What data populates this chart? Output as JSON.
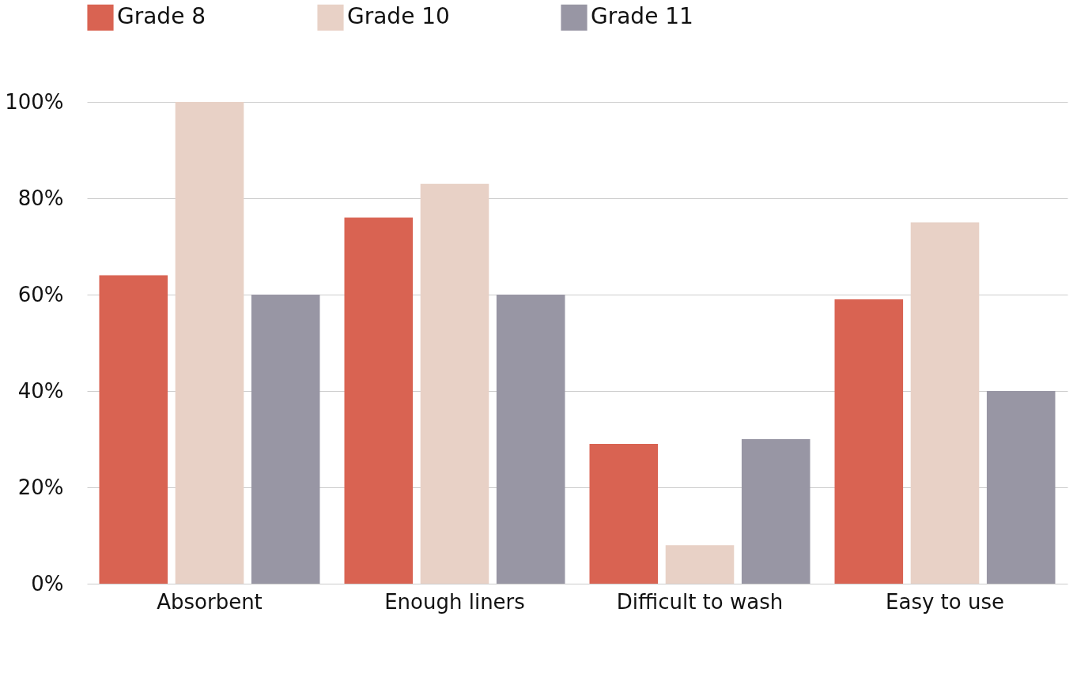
{
  "chart_data": {
    "type": "bar",
    "categories": [
      "Absorbent",
      "Enough liners",
      "Difficult to wash",
      "Easy to use"
    ],
    "series": [
      {
        "name": "Grade 8",
        "color": "#d96352",
        "values": [
          64,
          76,
          29,
          59
        ]
      },
      {
        "name": "Grade 10",
        "color": "#e8d1c6",
        "values": [
          100,
          83,
          8,
          75
        ]
      },
      {
        "name": "Grade 11",
        "color": "#9896a4",
        "values": [
          60,
          60,
          30,
          40
        ]
      }
    ],
    "ylim": [
      0,
      100
    ],
    "yticks": [
      {
        "value": 0,
        "label": "0%"
      },
      {
        "value": 20,
        "label": "20%"
      },
      {
        "value": 40,
        "label": "40%"
      },
      {
        "value": 60,
        "label": "60%"
      },
      {
        "value": 80,
        "label": "80%"
      },
      {
        "value": 100,
        "label": "100%"
      }
    ],
    "grid": "y",
    "legend": "top"
  }
}
